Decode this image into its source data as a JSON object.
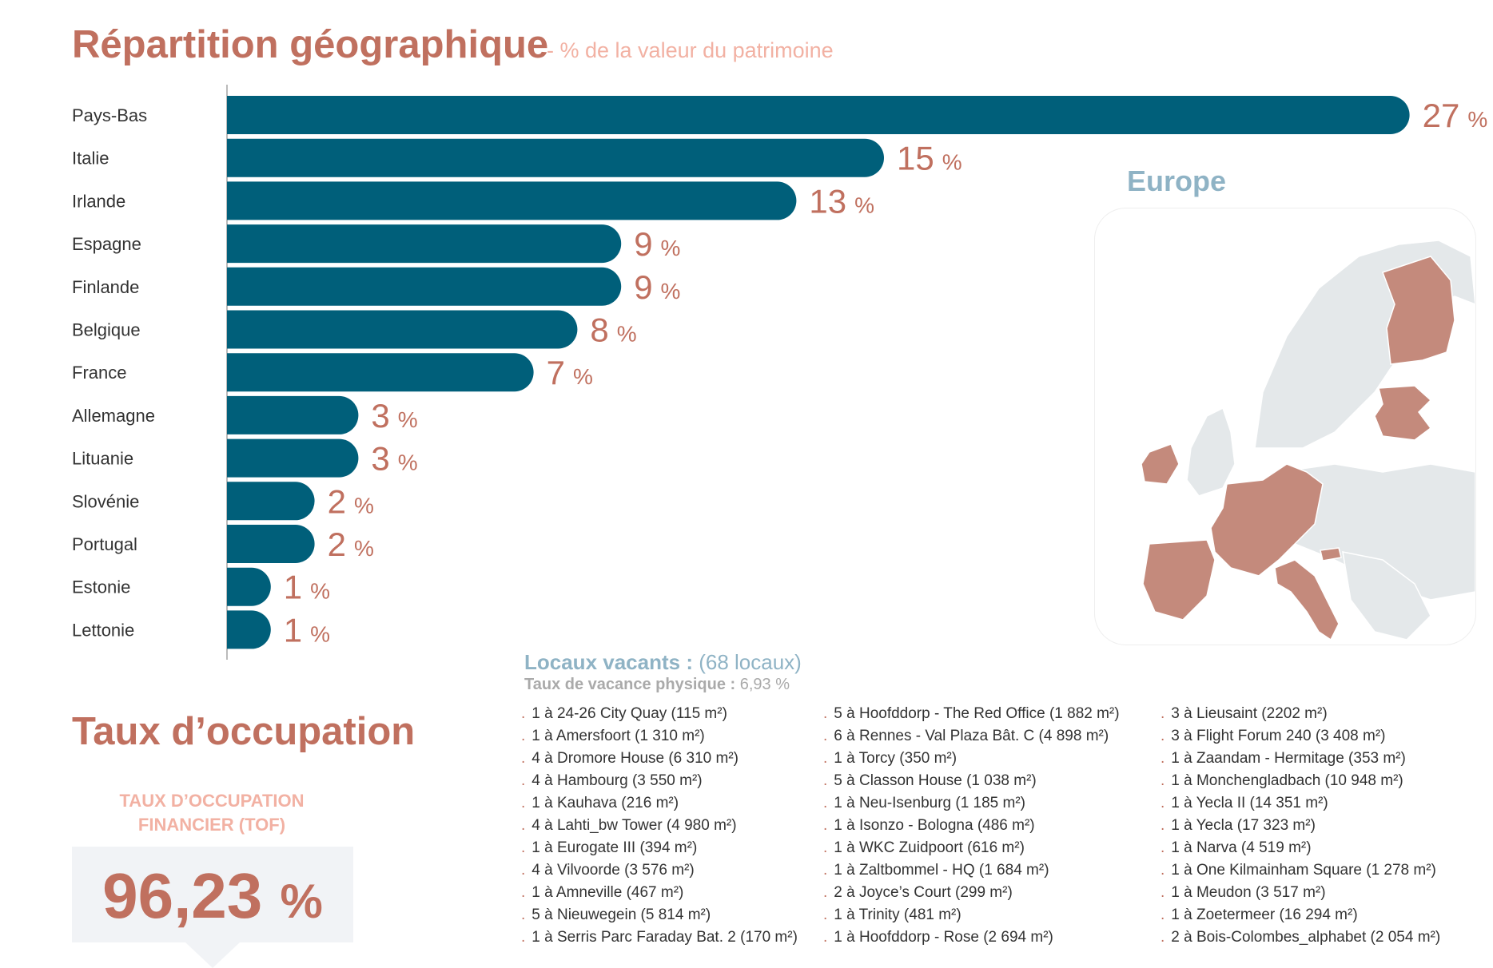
{
  "title": "Répartition géographique",
  "subtitle": "- % de la valeur du patrimoine",
  "chart_data": {
    "type": "bar",
    "orientation": "horizontal",
    "categories": [
      "Pays-Bas",
      "Italie",
      "Irlande",
      "Espagne",
      "Finlande",
      "Belgique",
      "France",
      "Allemagne",
      "Lituanie",
      "Slovénie",
      "Portugal",
      "Estonie",
      "Lettonie"
    ],
    "values": [
      27,
      15,
      13,
      9,
      9,
      8,
      7,
      3,
      3,
      2,
      2,
      1,
      1
    ],
    "value_labels": [
      "27",
      "15",
      "13",
      "9",
      "9",
      "8",
      "7",
      "3",
      "3",
      "2",
      "2",
      "1",
      "1"
    ],
    "unit": "%",
    "bar_color": "#005f7a",
    "label_color": "#c0705f"
  },
  "map": {
    "label": "Europe",
    "highlight_color": "#c48a7c",
    "base_color": "#e4e8ea"
  },
  "occupation": {
    "title": "Taux d’occupation",
    "tof_label": "TAUX D’OCCUPATION FINANCIER (TOF)",
    "tof_value": "96,23",
    "tof_unit": "%"
  },
  "vacancy": {
    "title": "Locaux vacants :",
    "count": "(68 locaux)",
    "rate_label": "Taux de vacance physique :",
    "rate_value": "6,93 %",
    "columns": [
      [
        "1 à 24-26 City Quay (115 m²)",
        "1 à Amersfoort (1 310 m²)",
        "4 à Dromore House (6 310 m²)",
        "4 à Hambourg (3 550 m²)",
        "1 à Kauhava (216 m²)",
        "4 à Lahti_bw Tower (4 980 m²)",
        "1 à Eurogate III (394 m²)",
        "4 à Vilvoorde (3 576 m²)",
        "1 à Amneville (467 m²)",
        "5 à Nieuwegein (5 814 m²)",
        "1 à Serris Parc Faraday Bat. 2 (170 m²)"
      ],
      [
        "5 à Hoofddorp - The Red Office (1 882 m²)",
        "6 à Rennes - Val Plaza Bât. C (4 898 m²)",
        "1 à Torcy (350 m²)",
        "5 à Classon House (1 038 m²)",
        "1 à Neu-Isenburg (1 185 m²)",
        "1 à Isonzo - Bologna (486 m²)",
        "1 à WKC Zuidpoort (616 m²)",
        "1 à Zaltbommel - HQ (1 684 m²)",
        "2 à Joyce’s Court (299 m²)",
        "1 à Trinity (481 m²)",
        "1 à Hoofddorp - Rose (2 694 m²)"
      ],
      [
        "3 à Lieusaint (2202 m²)",
        "3 à Flight Forum 240 (3 408 m²)",
        "1 à Zaandam - Hermitage (353 m²)",
        "1 à Monchengladbach (10 948 m²)",
        "1 à Yecla II (14 351 m²)",
        "1 à Yecla (17 323 m²)",
        "1 à Narva (4 519 m²)",
        "1 à One Kilmainham Square (1 278 m²)",
        "1 à Meudon (3 517 m²)",
        "1 à Zoetermeer (16 294 m²)",
        "2 à Bois-Colombes_alphabet (2 054 m²)"
      ]
    ]
  }
}
